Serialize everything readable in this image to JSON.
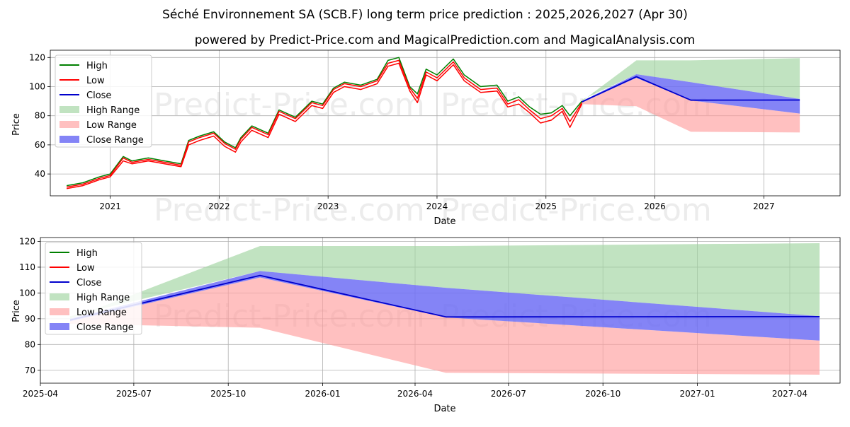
{
  "title": "Séché Environnement SA (SCB.F) long term price prediction : 2025,2026,2027 (Apr 30)",
  "subtitle": "powered by Predict-Price.com and MagicalPrediction.com and MagicalAnalysis.com",
  "watermark": "Predict-Price.com",
  "colors": {
    "high": "#008000",
    "low": "#ff0000",
    "close": "#0000cc",
    "high_range": "#9fd49f",
    "low_range": "#ff9e9e",
    "close_range": "#6f6ff5",
    "grid": "#b0b0b0"
  },
  "chart_data": [
    {
      "type": "line",
      "x_unit": "year",
      "xlabel": "Date",
      "ylabel": "Price",
      "xlim": [
        2020.45,
        2027.7
      ],
      "ylim": [
        25,
        125
      ],
      "x_ticks": [
        2021,
        2022,
        2023,
        2024,
        2025,
        2026,
        2027
      ],
      "x_tick_labels": [
        "2021",
        "2022",
        "2023",
        "2024",
        "2025",
        "2026",
        "2027"
      ],
      "y_ticks": [
        40,
        60,
        80,
        100,
        120
      ],
      "grid": true,
      "legend_position": "top-left",
      "legend": [
        "High",
        "Low",
        "Close",
        "High Range",
        "Low Range",
        "Close Range"
      ],
      "history": {
        "x": [
          2020.6,
          2020.75,
          2020.9,
          2021.0,
          2021.12,
          2021.2,
          2021.35,
          2021.5,
          2021.65,
          2021.72,
          2021.82,
          2021.95,
          2022.05,
          2022.15,
          2022.2,
          2022.3,
          2022.45,
          2022.55,
          2022.7,
          2022.85,
          2022.95,
          2023.05,
          2023.15,
          2023.3,
          2023.45,
          2023.55,
          2023.65,
          2023.75,
          2023.82,
          2023.9,
          2024.0,
          2024.15,
          2024.25,
          2024.4,
          2024.55,
          2024.65,
          2024.75,
          2024.85,
          2024.95,
          2025.05,
          2025.15,
          2025.22,
          2025.33
        ],
        "high": [
          32,
          34,
          38,
          40,
          52,
          49,
          51,
          49,
          47,
          63,
          66,
          69,
          62,
          58,
          65,
          73,
          68,
          84,
          79,
          90,
          88,
          99,
          103,
          101,
          105,
          118,
          120,
          100,
          95,
          112,
          108,
          119,
          108,
          100,
          101,
          90,
          93,
          86,
          81,
          82,
          87,
          80,
          90
        ],
        "low": [
          30,
          32,
          36,
          38,
          49,
          47,
          49,
          47,
          45,
          60,
          63,
          66,
          59,
          55,
          62,
          70,
          65,
          81,
          76,
          87,
          85,
          96,
          100,
          98,
          102,
          114,
          116,
          97,
          89,
          108,
          104,
          115,
          104,
          96,
          97,
          86,
          88,
          82,
          75,
          77,
          83,
          72,
          88
        ],
        "close": [
          31,
          33,
          37,
          39,
          51,
          48,
          50,
          48,
          46,
          62,
          65,
          68,
          61,
          57,
          64,
          72,
          67,
          83,
          78,
          89,
          87,
          98,
          102,
          100,
          104,
          116,
          118,
          99,
          92,
          110,
          106,
          117,
          106,
          98,
          99,
          88,
          91,
          84,
          78,
          80,
          85,
          76,
          89
        ]
      },
      "forecast": {
        "x": [
          2025.33,
          2025.83,
          2026.33,
          2027.33
        ],
        "close": [
          89.5,
          106.8,
          90.7,
          90.8
        ],
        "high_range": [
          [
            90,
            91
          ],
          [
            118,
            108.5
          ],
          [
            118,
            103
          ],
          [
            119.5,
            91.5
          ]
        ],
        "low_range": [
          [
            89,
            88
          ],
          [
            106,
            86.5
          ],
          [
            90.5,
            69
          ],
          [
            81.5,
            68.5
          ]
        ],
        "close_range": [
          [
            90,
            89
          ],
          [
            108.5,
            106
          ],
          [
            103,
            90.5
          ],
          [
            91.5,
            81.5
          ]
        ]
      }
    },
    {
      "type": "line",
      "x_unit": "date",
      "xlabel": "Date",
      "ylabel": "Price",
      "xlim": [
        "2025-04-01",
        "2027-05-20"
      ],
      "ylim": [
        65,
        121.5
      ],
      "x_ticks": [
        "2025-04-01",
        "2025-07-01",
        "2025-10-01",
        "2026-01-01",
        "2026-04-01",
        "2026-07-01",
        "2026-10-01",
        "2027-01-01",
        "2027-04-01"
      ],
      "x_tick_labels": [
        "2025-04",
        "2025-07",
        "2025-10",
        "2026-01",
        "2026-04",
        "2026-07",
        "2026-10",
        "2027-01",
        "2027-04"
      ],
      "y_ticks": [
        70,
        80,
        90,
        100,
        110,
        120
      ],
      "grid": true,
      "legend_position": "top-left",
      "legend": [
        "High",
        "Low",
        "Close",
        "High Range",
        "Low Range",
        "Close Range"
      ],
      "forecast": {
        "x": [
          "2025-04-30",
          "2025-11-01",
          "2026-05-01",
          "2027-04-30"
        ],
        "close": [
          89.5,
          106.8,
          90.7,
          90.8
        ],
        "high_range": [
          [
            90,
            91
          ],
          [
            118.2,
            108.5
          ],
          [
            118.2,
            102
          ],
          [
            119.3,
            91
          ]
        ],
        "low_range": [
          [
            89,
            88
          ],
          [
            106,
            86.5
          ],
          [
            90.5,
            69
          ],
          [
            81.5,
            68.3
          ]
        ],
        "close_range": [
          [
            90,
            89
          ],
          [
            108.5,
            106
          ],
          [
            102,
            90.5
          ],
          [
            91,
            81.5
          ]
        ]
      }
    }
  ]
}
